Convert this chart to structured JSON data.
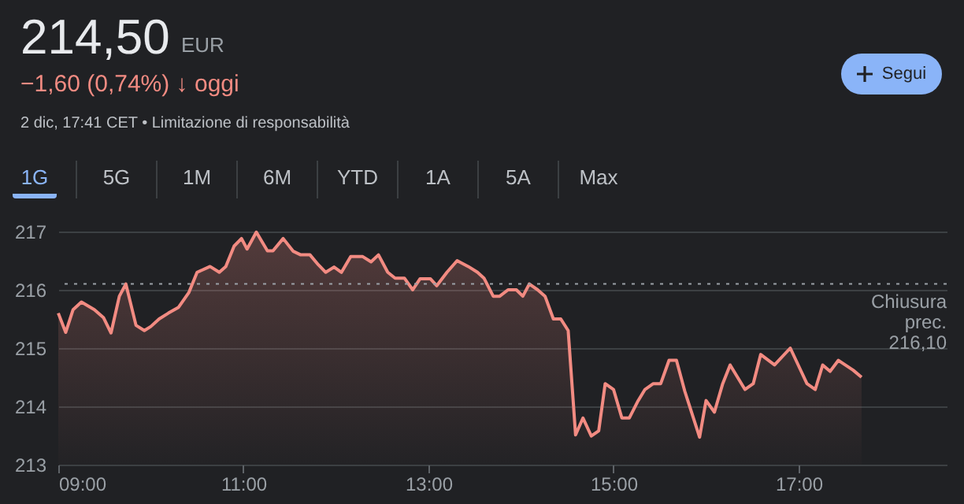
{
  "chart_data": {
    "type": "area",
    "title": "214,50",
    "subtitle": "EUR",
    "annotations": [
      "−1,60 (0,74%) ↓ oggi",
      "2 dic, 17:41 CET • Limitazione di responsabilità",
      "1G",
      "5G",
      "1M",
      "6M",
      "YTD",
      "1A",
      "5A",
      "Max",
      "Segui"
    ],
    "series": [
      {
        "color": "#f28b82",
        "x": [
          9.0,
          9.08,
          9.16,
          9.25,
          9.39,
          9.49,
          9.57,
          9.66,
          9.73,
          9.84,
          9.93,
          10.0,
          10.09,
          10.19,
          10.3,
          10.41,
          10.5,
          10.64,
          10.74,
          10.81,
          10.9,
          10.98,
          11.04,
          11.14,
          11.26,
          11.32,
          11.43,
          11.54,
          11.62,
          11.72,
          11.81,
          11.89,
          11.98,
          12.06,
          12.16,
          12.29,
          12.38,
          12.46,
          12.56,
          12.64,
          12.74,
          12.83,
          12.91,
          13.02,
          13.09,
          13.2,
          13.31,
          13.43,
          13.53,
          13.6,
          13.7,
          13.77,
          13.86,
          13.95,
          14.02,
          14.09,
          14.18,
          14.26,
          14.35,
          14.43,
          14.51,
          14.59,
          14.67,
          14.76,
          14.84,
          14.91,
          15.0,
          15.09,
          15.17,
          15.26,
          15.34,
          15.43,
          15.51,
          15.6,
          15.68,
          15.77,
          15.93,
          16.0,
          16.09,
          16.18,
          16.26,
          16.42,
          16.51,
          16.59,
          16.74,
          16.91,
          17.09,
          17.18,
          17.26,
          17.34,
          17.43,
          17.59,
          17.68
        ],
        "values": [
          215.6,
          215.27,
          215.66,
          215.79,
          215.66,
          215.52,
          215.26,
          215.89,
          216.1,
          215.39,
          215.3,
          215.37,
          215.5,
          215.6,
          215.7,
          215.95,
          216.3,
          216.4,
          216.3,
          216.4,
          216.75,
          216.88,
          216.7,
          216.99,
          216.67,
          216.67,
          216.88,
          216.66,
          216.6,
          216.6,
          216.43,
          216.3,
          216.39,
          216.3,
          216.57,
          216.57,
          216.48,
          216.6,
          216.3,
          216.2,
          216.2,
          216.0,
          216.19,
          216.19,
          216.07,
          216.3,
          216.5,
          216.4,
          216.3,
          216.2,
          215.89,
          215.89,
          216.0,
          216.0,
          215.89,
          216.1,
          216.0,
          215.89,
          215.5,
          215.5,
          215.3,
          213.51,
          213.8,
          213.49,
          213.58,
          214.39,
          214.29,
          213.8,
          213.8,
          214.08,
          214.29,
          214.39,
          214.39,
          214.79,
          214.79,
          214.26,
          213.47,
          214.1,
          213.9,
          214.39,
          214.71,
          214.29,
          214.39,
          214.89,
          214.71,
          215.0,
          214.39,
          214.29,
          214.71,
          214.6,
          214.79,
          214.62,
          214.5
        ]
      }
    ],
    "xlim": [
      9,
      18.6
    ],
    "xticks": [
      {
        "value": 9,
        "label": "09:00"
      },
      {
        "value": 11,
        "label": "11:00"
      },
      {
        "value": 13,
        "label": "13:00"
      },
      {
        "value": 15,
        "label": "15:00"
      },
      {
        "value": 17,
        "label": "17:00"
      }
    ],
    "ylim": [
      213,
      217
    ],
    "yticks": [
      213,
      214,
      215,
      216,
      217
    ],
    "grid": "y",
    "ref_lines": [
      {
        "axis": "y",
        "value": 216.1,
        "label": "Chiusura prec. 216,10",
        "color": "#9aa0a6",
        "line_style": "dotted"
      }
    ]
  }
}
